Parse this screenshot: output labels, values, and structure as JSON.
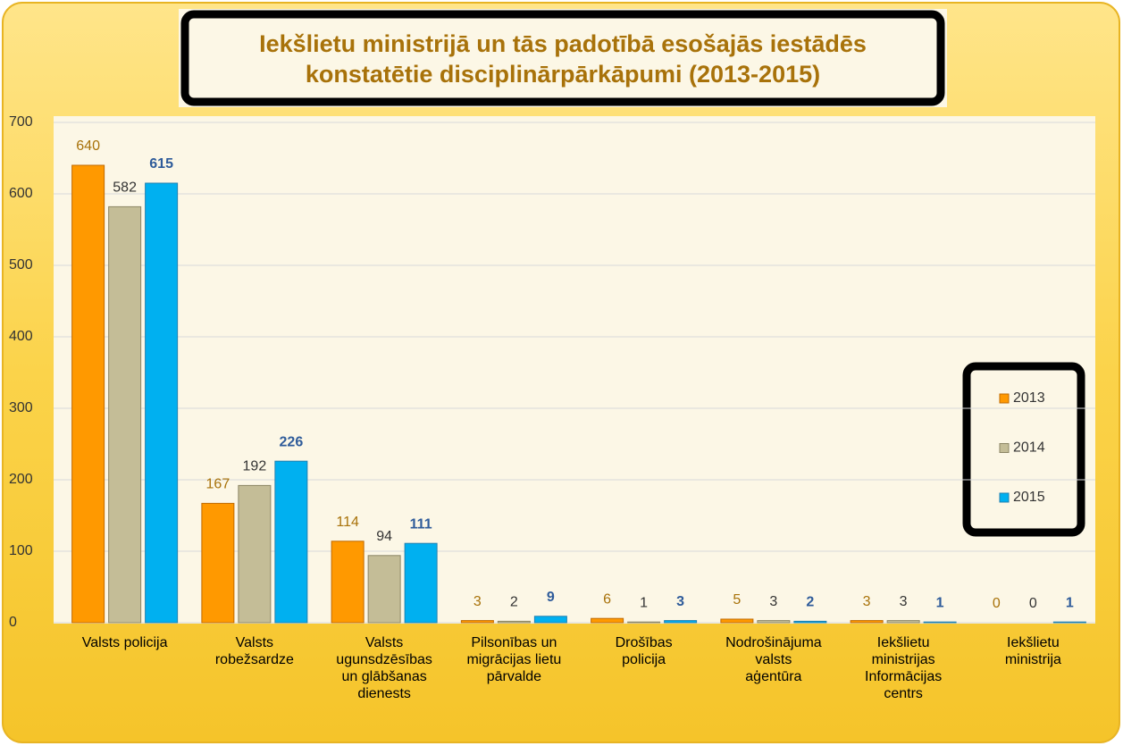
{
  "chart_data": {
    "type": "bar",
    "title": "Iekšlietu ministrijā un tās padotībā esošajās iestādēs\nkonstatētie disciplinārpārkāpumi (2013-2015)",
    "categories": [
      "Valsts policija",
      "Valsts\nrobežsardze",
      "Valsts\nugunsdzēsības\nun glābšanas\ndienests",
      "Pilsonības un\nmigrācijas lietu\npārvalde",
      "Drošības\npolicija",
      "Nodrošinājuma\nvalsts\naģentūra",
      "Iekšlietu\nministrijas\nInformācijas\ncentrs",
      "Iekšlietu\nministrija"
    ],
    "series": [
      {
        "name": "2013",
        "color": "#ff9900",
        "values": [
          640,
          167,
          114,
          3,
          6,
          5,
          3,
          0
        ]
      },
      {
        "name": "2014",
        "color": "#c4bd97",
        "values": [
          582,
          192,
          94,
          2,
          1,
          3,
          3,
          0
        ]
      },
      {
        "name": "2015",
        "color": "#00b0f0",
        "values": [
          615,
          226,
          111,
          9,
          3,
          2,
          1,
          1
        ]
      }
    ],
    "ylim": [
      0,
      700
    ],
    "yticks": [
      0,
      100,
      200,
      300,
      400,
      500,
      600,
      700
    ],
    "grid": true,
    "legend": "right"
  }
}
